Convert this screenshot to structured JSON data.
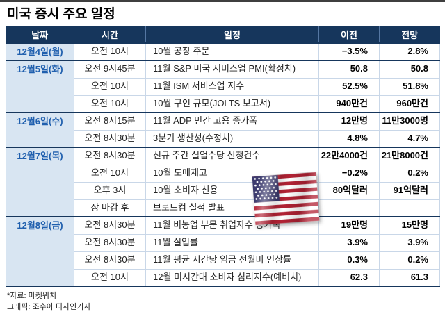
{
  "title": "미국 증시 주요 일정",
  "chart_data": {
    "type": "table",
    "title": "미국 증시 주요 일정",
    "columns": [
      "날짜",
      "시간",
      "일정",
      "이전",
      "전망"
    ],
    "groups": [
      {
        "date": "12월4일(월)",
        "rows": [
          {
            "time": "오전 10시",
            "event": "10월 공장 주문",
            "prev": "−3.5%",
            "forecast": "2.8%"
          }
        ]
      },
      {
        "date": "12월5일(화)",
        "rows": [
          {
            "time": "오전 9시45분",
            "event": "11월 S&P 미국 서비스업 PMI(확정치)",
            "prev": "50.8",
            "forecast": "50.8"
          },
          {
            "time": "오전 10시",
            "event": "11월 ISM 서비스업 지수",
            "prev": "52.5%",
            "forecast": "51.8%"
          },
          {
            "time": "오전 10시",
            "event": "10월 구인 규모(JOLTS 보고서)",
            "prev": "940만건",
            "forecast": "960만건"
          }
        ]
      },
      {
        "date": "12월6일(수)",
        "rows": [
          {
            "time": "오전 8시15분",
            "event": "11월 ADP 민간 고용 증가폭",
            "prev": "12만명",
            "forecast": "11만3000명"
          },
          {
            "time": "오전 8시30분",
            "event": "3분기 생산성(수정치)",
            "prev": "4.8%",
            "forecast": "4.7%"
          }
        ]
      },
      {
        "date": "12월7일(목)",
        "rows": [
          {
            "time": "오전 8시30분",
            "event": "신규 주간 실업수당 신청건수",
            "prev": "22만4000건",
            "forecast": "21만8000건"
          },
          {
            "time": "오전 10시",
            "event": "10월 도매재고",
            "prev": "−0.2%",
            "forecast": "0.2%"
          },
          {
            "time": "오후 3시",
            "event": "10월 소비자 신용",
            "prev": "80억달러",
            "forecast": "91억달러"
          },
          {
            "time": "장 마감 후",
            "event": "브로드컴 실적 발표",
            "prev": "",
            "forecast": ""
          }
        ]
      },
      {
        "date": "12월8일(금)",
        "rows": [
          {
            "time": "오전 8시30분",
            "event": "11월 비농업 부문 취업자수 증가폭",
            "prev": "19만명",
            "forecast": "15만명"
          },
          {
            "time": "오전 8시30분",
            "event": "11월 실업률",
            "prev": "3.9%",
            "forecast": "3.9%"
          },
          {
            "time": "오전 8시30분",
            "event": "11월 평균 시간당 임금 전월비 인상률",
            "prev": "0.3%",
            "forecast": "0.2%"
          },
          {
            "time": "오전 10시",
            "event": "12월 미시간대 소비자 심리지수(예비치)",
            "prev": "62.3",
            "forecast": "61.3"
          }
        ]
      }
    ]
  },
  "footer": {
    "source": "*자료: 마켓워치",
    "credit": "그래픽: 조수아 디자인기자"
  },
  "icons": {
    "flag": "us-flag-icon"
  },
  "colors": {
    "header_bg": "#16365c",
    "date_bg": "#d8e5f2",
    "date_text": "#1f5fae",
    "section_border": "#16365c",
    "grid_border": "#c9d7e8",
    "flag_red": "#B22234",
    "flag_blue": "#3C3B6E"
  }
}
